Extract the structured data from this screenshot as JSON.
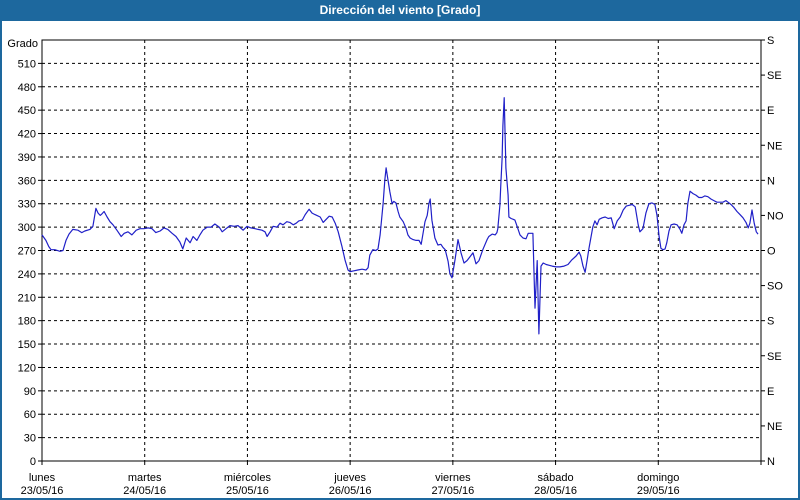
{
  "window": {
    "title": "Dirección del viento [Grado]",
    "title_bg": "#1d689e",
    "title_color": "#ffffff",
    "frame_color": "#1d689e",
    "background": "#ffffff"
  },
  "chart_data": {
    "type": "line",
    "title": "Dirección del viento [Grado]",
    "ylabel_left": "Grado",
    "line_color": "#2020c8",
    "grid": "dashed black",
    "grid_color": "#000000",
    "y_axis_left": {
      "min": 0,
      "max": 540,
      "tick_step": 30,
      "tick_labels": [
        0,
        30,
        60,
        90,
        120,
        150,
        180,
        210,
        240,
        270,
        300,
        330,
        360,
        390,
        420,
        450,
        480,
        510
      ]
    },
    "y_axis_right": {
      "unit": "compass",
      "labels": [
        {
          "value": 540,
          "label": "S"
        },
        {
          "value": 495,
          "label": "SE"
        },
        {
          "value": 450,
          "label": "E"
        },
        {
          "value": 405,
          "label": "NE"
        },
        {
          "value": 360,
          "label": "N"
        },
        {
          "value": 315,
          "label": "NO"
        },
        {
          "value": 270,
          "label": "O"
        },
        {
          "value": 225,
          "label": "SO"
        },
        {
          "value": 180,
          "label": "S"
        },
        {
          "value": 135,
          "label": "SE"
        },
        {
          "value": 90,
          "label": "E"
        },
        {
          "value": 45,
          "label": "NE"
        },
        {
          "value": 0,
          "label": "N"
        }
      ]
    },
    "x_axis": {
      "unit": "hours",
      "range": [
        0,
        168
      ],
      "day_span_hours": 24,
      "days": [
        {
          "name": "lunes",
          "date": "23/05/16"
        },
        {
          "name": "martes",
          "date": "24/05/16"
        },
        {
          "name": "miércoles",
          "date": "25/05/16"
        },
        {
          "name": "jueves",
          "date": "26/05/16"
        },
        {
          "name": "viernes",
          "date": "27/05/16"
        },
        {
          "name": "sábado",
          "date": "28/05/16"
        },
        {
          "name": "domingo",
          "date": "29/05/16"
        }
      ]
    },
    "series": [
      {
        "name": "Dirección del viento [Grado]",
        "points": [
          [
            0,
            290
          ],
          [
            0.9,
            283
          ],
          [
            1.6,
            275
          ],
          [
            2.1,
            271
          ],
          [
            3,
            271
          ],
          [
            4.2,
            269
          ],
          [
            4.9,
            270
          ],
          [
            5.6,
            283
          ],
          [
            6.3,
            291
          ],
          [
            7.2,
            297
          ],
          [
            8.4,
            296
          ],
          [
            9.3,
            293
          ],
          [
            10,
            295
          ],
          [
            11.2,
            297
          ],
          [
            11.9,
            301
          ],
          [
            12.6,
            324
          ],
          [
            13.1,
            318
          ],
          [
            13.6,
            315
          ],
          [
            14,
            317
          ],
          [
            14.5,
            320
          ],
          [
            15.2,
            313
          ],
          [
            15.9,
            307
          ],
          [
            16.6,
            303
          ],
          [
            17.5,
            296
          ],
          [
            18.5,
            288
          ],
          [
            19.2,
            292
          ],
          [
            20.1,
            294
          ],
          [
            21,
            290
          ],
          [
            22,
            296
          ],
          [
            22.9,
            298
          ],
          [
            23.8,
            298
          ],
          [
            24.8,
            299
          ],
          [
            25.7,
            298
          ],
          [
            26.6,
            293
          ],
          [
            27.6,
            295
          ],
          [
            28.5,
            299
          ],
          [
            29.4,
            297
          ],
          [
            30.4,
            292
          ],
          [
            31.3,
            288
          ],
          [
            32.2,
            281
          ],
          [
            32.9,
            272
          ],
          [
            33.7,
            286
          ],
          [
            34.6,
            280
          ],
          [
            35.3,
            288
          ],
          [
            36.2,
            283
          ],
          [
            36.9,
            290
          ],
          [
            37.6,
            296
          ],
          [
            38.6,
            300
          ],
          [
            39.5,
            300
          ],
          [
            40.4,
            304
          ],
          [
            41.4,
            300
          ],
          [
            42.1,
            294
          ],
          [
            43,
            298
          ],
          [
            43.9,
            302
          ],
          [
            44.9,
            301
          ],
          [
            45.8,
            302
          ],
          [
            47,
            296
          ],
          [
            47.9,
            301
          ],
          [
            48.8,
            299
          ],
          [
            49.8,
            298
          ],
          [
            50.5,
            297
          ],
          [
            51.4,
            296
          ],
          [
            52.1,
            294
          ],
          [
            52.6,
            288
          ],
          [
            53.3,
            294
          ],
          [
            54,
            301
          ],
          [
            54.9,
            300
          ],
          [
            55.6,
            305
          ],
          [
            56.3,
            303
          ],
          [
            57.2,
            307
          ],
          [
            57.9,
            306
          ],
          [
            58.7,
            303
          ],
          [
            59.4,
            305
          ],
          [
            60,
            308
          ],
          [
            60.8,
            309
          ],
          [
            61.5,
            316
          ],
          [
            62.4,
            323
          ],
          [
            63.1,
            318
          ],
          [
            63.8,
            316
          ],
          [
            65,
            313
          ],
          [
            65.7,
            306
          ],
          [
            66.4,
            310
          ],
          [
            67.1,
            314
          ],
          [
            67.8,
            313
          ],
          [
            68.5,
            305
          ],
          [
            69.2,
            294
          ],
          [
            70.1,
            275
          ],
          [
            70.8,
            258
          ],
          [
            71.5,
            245
          ],
          [
            72,
            243
          ],
          [
            72.9,
            244
          ],
          [
            73.8,
            245
          ],
          [
            74.8,
            246
          ],
          [
            75.7,
            245
          ],
          [
            76.2,
            248
          ],
          [
            76.6,
            264
          ],
          [
            77.3,
            271
          ],
          [
            78,
            270
          ],
          [
            78.5,
            272
          ],
          [
            79,
            290
          ],
          [
            79.7,
            330
          ],
          [
            80.1,
            360
          ],
          [
            80.4,
            376
          ],
          [
            80.8,
            362
          ],
          [
            81.3,
            345
          ],
          [
            81.8,
            330
          ],
          [
            82.2,
            333
          ],
          [
            82.7,
            331
          ],
          [
            83.2,
            320
          ],
          [
            83.6,
            313
          ],
          [
            84.4,
            307
          ],
          [
            85.1,
            298
          ],
          [
            85.5,
            290
          ],
          [
            86,
            286
          ],
          [
            86.7,
            284
          ],
          [
            87.4,
            283
          ],
          [
            88.1,
            283
          ],
          [
            88.6,
            278
          ],
          [
            89.5,
            307
          ],
          [
            90,
            315
          ],
          [
            90.4,
            330
          ],
          [
            90.7,
            336
          ],
          [
            91.1,
            309
          ],
          [
            91.8,
            286
          ],
          [
            92.5,
            277
          ],
          [
            93.2,
            278
          ],
          [
            93.7,
            274
          ],
          [
            94.2,
            271
          ],
          [
            94.9,
            256
          ],
          [
            95.3,
            240
          ],
          [
            95.8,
            235
          ],
          [
            96.5,
            258
          ],
          [
            97.2,
            284
          ],
          [
            97.9,
            267
          ],
          [
            98.6,
            254
          ],
          [
            99.3,
            257
          ],
          [
            100,
            262
          ],
          [
            100.7,
            267
          ],
          [
            101.4,
            253
          ],
          [
            102.1,
            257
          ],
          [
            103,
            271
          ],
          [
            104,
            284
          ],
          [
            104.4,
            288
          ],
          [
            105.2,
            291
          ],
          [
            105.9,
            290
          ],
          [
            106.3,
            293
          ],
          [
            106.5,
            298
          ],
          [
            107,
            328
          ],
          [
            107.2,
            354
          ],
          [
            107.5,
            388
          ],
          [
            107.7,
            430
          ],
          [
            108,
            466
          ],
          [
            108.2,
            418
          ],
          [
            108.4,
            376
          ],
          [
            108.9,
            341
          ],
          [
            109.1,
            313
          ],
          [
            109.6,
            311
          ],
          [
            110.1,
            310
          ],
          [
            110.5,
            309
          ],
          [
            111,
            301
          ],
          [
            111.7,
            290
          ],
          [
            112.4,
            286
          ],
          [
            113.1,
            285
          ],
          [
            113.6,
            292
          ],
          [
            114.3,
            292
          ],
          [
            114.7,
            292
          ],
          [
            115.2,
            196
          ],
          [
            115.7,
            257
          ],
          [
            116.1,
            163
          ],
          [
            116.6,
            250
          ],
          [
            117.1,
            254
          ],
          [
            117.8,
            252
          ],
          [
            118.5,
            251
          ],
          [
            119.2,
            250
          ],
          [
            120.1,
            249
          ],
          [
            121,
            249
          ],
          [
            122,
            250
          ],
          [
            122.9,
            252
          ],
          [
            123.8,
            258
          ],
          [
            124.8,
            263
          ],
          [
            125.5,
            268
          ],
          [
            125.9,
            263
          ],
          [
            126.4,
            250
          ],
          [
            126.9,
            242
          ],
          [
            127.3,
            255
          ],
          [
            127.8,
            273
          ],
          [
            128.3,
            288
          ],
          [
            128.7,
            300
          ],
          [
            129.2,
            308
          ],
          [
            129.7,
            303
          ],
          [
            130.2,
            310
          ],
          [
            130.9,
            312
          ],
          [
            131.6,
            313
          ],
          [
            132.3,
            311
          ],
          [
            133,
            312
          ],
          [
            133.7,
            298
          ],
          [
            134.4,
            308
          ],
          [
            135.1,
            313
          ],
          [
            135.8,
            322
          ],
          [
            136.5,
            327
          ],
          [
            137.2,
            328
          ],
          [
            137.9,
            329
          ],
          [
            138.6,
            326
          ],
          [
            139.3,
            303
          ],
          [
            139.7,
            294
          ],
          [
            140.4,
            298
          ],
          [
            141.1,
            318
          ],
          [
            141.8,
            330
          ],
          [
            142.5,
            331
          ],
          [
            143.2,
            329
          ],
          [
            143.7,
            315
          ],
          [
            144.2,
            288
          ],
          [
            144.6,
            273
          ],
          [
            145.1,
            271
          ],
          [
            145.6,
            272
          ],
          [
            146,
            280
          ],
          [
            146.5,
            295
          ],
          [
            147,
            303
          ],
          [
            147.7,
            304
          ],
          [
            148.4,
            303
          ],
          [
            149.1,
            297
          ],
          [
            149.5,
            292
          ],
          [
            150,
            303
          ],
          [
            150.5,
            308
          ],
          [
            150.9,
            330
          ],
          [
            151.4,
            346
          ],
          [
            152.1,
            343
          ],
          [
            152.8,
            341
          ],
          [
            153.5,
            338
          ],
          [
            154.2,
            338
          ],
          [
            154.9,
            340
          ],
          [
            155.6,
            339
          ],
          [
            156.3,
            336
          ],
          [
            157,
            334
          ],
          [
            157.7,
            332
          ],
          [
            158.4,
            332
          ],
          [
            159.1,
            332
          ],
          [
            159.8,
            334
          ],
          [
            160.3,
            332
          ],
          [
            161,
            329
          ],
          [
            161.7,
            325
          ],
          [
            162.4,
            320
          ],
          [
            163.1,
            316
          ],
          [
            163.8,
            312
          ],
          [
            164.5,
            306
          ],
          [
            165,
            299
          ],
          [
            165.4,
            305
          ],
          [
            165.9,
            322
          ],
          [
            166.4,
            305
          ],
          [
            166.9,
            294
          ],
          [
            167.3,
            291
          ]
        ]
      }
    ]
  }
}
